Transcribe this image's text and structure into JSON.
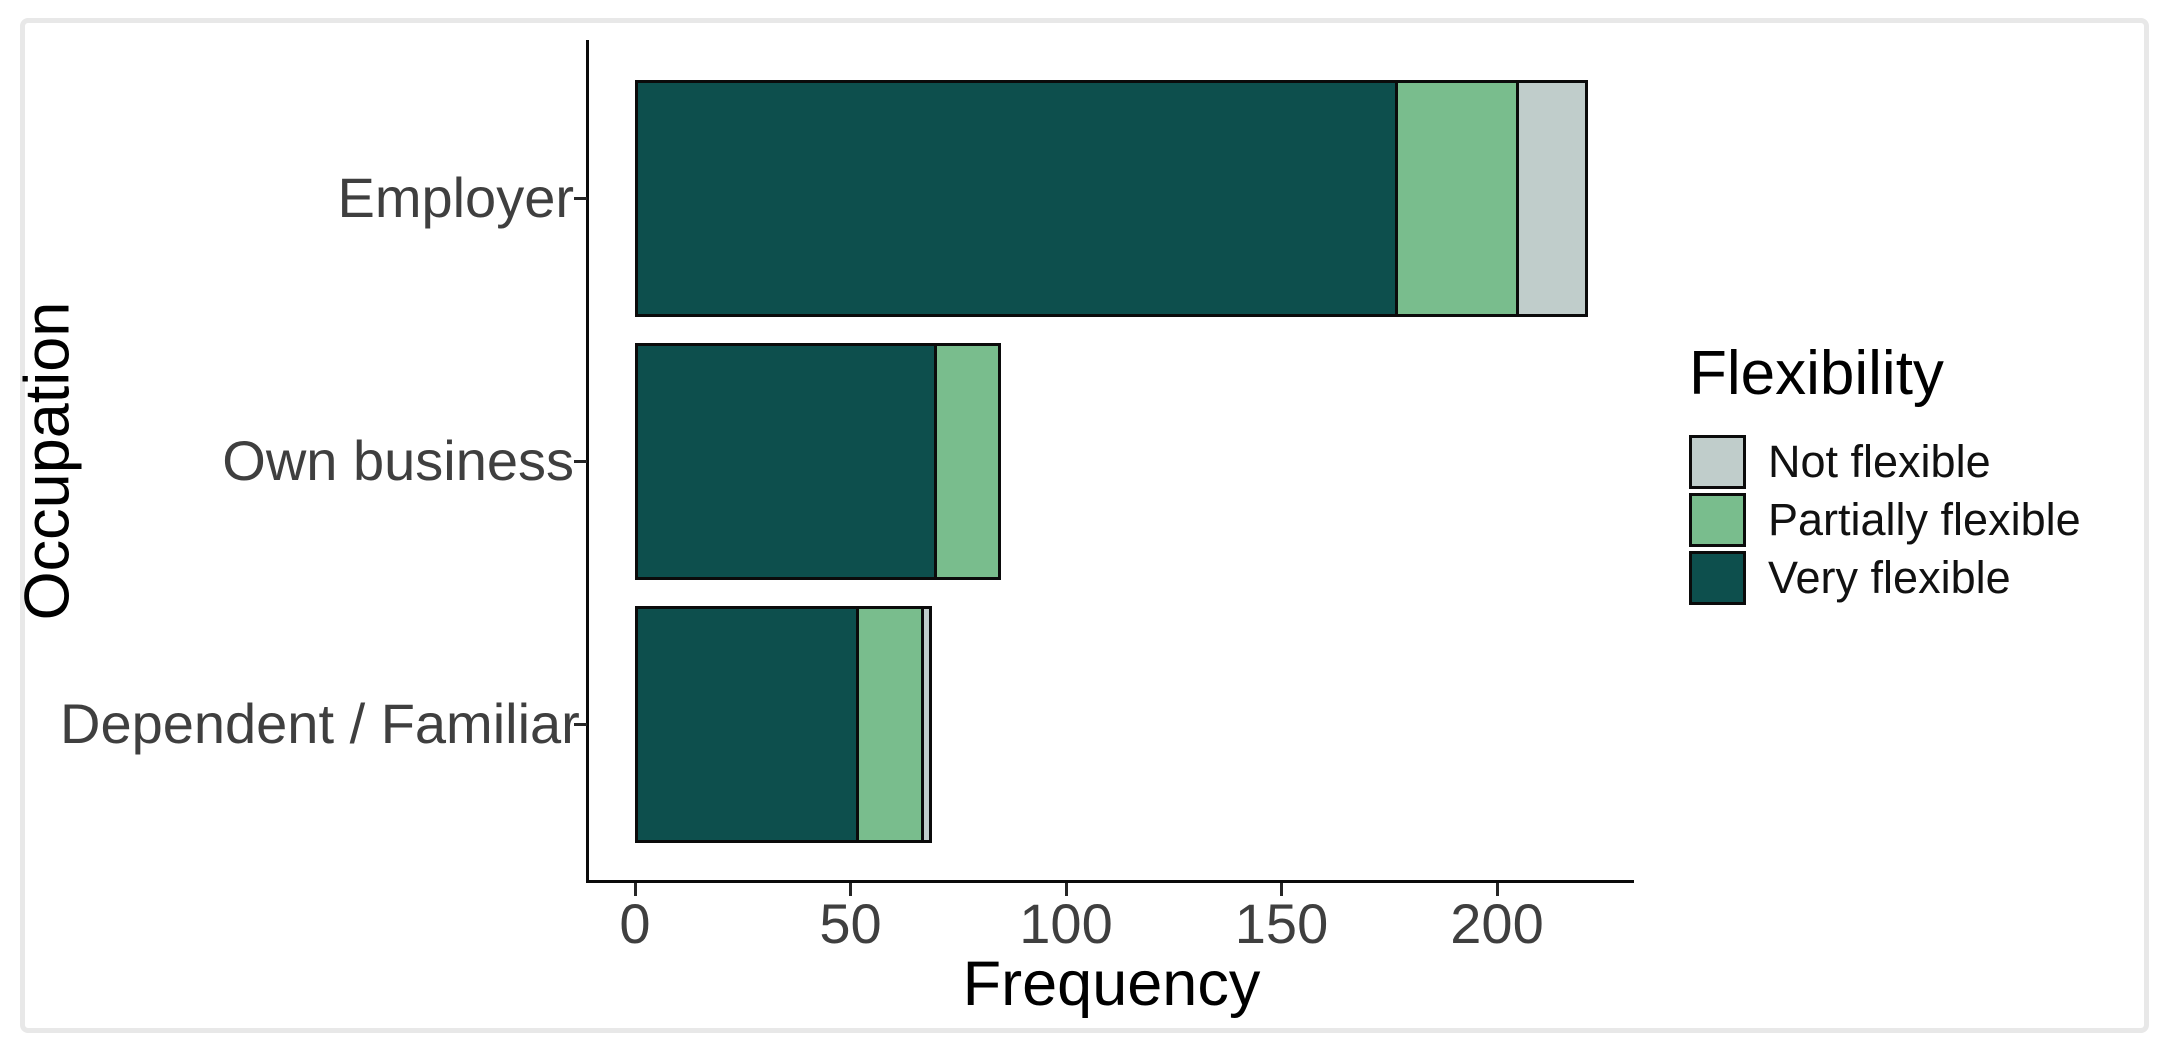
{
  "chart_data": {
    "type": "bar",
    "orientation": "horizontal",
    "stacked": true,
    "title": "",
    "xlabel": "Frequency",
    "ylabel": "Occupation",
    "categories": [
      "Employer",
      "Own business",
      "Dependent / Familiar"
    ],
    "series": [
      {
        "name": "Very flexible",
        "color": "#0D4F4D",
        "values": [
          177,
          70,
          52
        ]
      },
      {
        "name": "Partially flexible",
        "color": "#79BD8D",
        "values": [
          28,
          15,
          15
        ]
      },
      {
        "name": "Not flexible",
        "color": "#C0CDCB",
        "values": [
          16,
          0,
          2
        ]
      }
    ],
    "x_ticks": [
      0,
      50,
      100,
      150,
      200
    ],
    "xlim": [
      0,
      232
    ],
    "grid": false,
    "bar_outline_color": "#0b0b0b",
    "legend": {
      "title": "Flexibility",
      "position": "right",
      "items": [
        {
          "label": "Not flexible",
          "color": "#C0CDCB"
        },
        {
          "label": "Partially flexible",
          "color": "#79BD8D"
        },
        {
          "label": "Very flexible",
          "color": "#0D4F4D"
        }
      ]
    },
    "axis_text_color": "#3f3f3f",
    "axis_title_color": "#000000"
  }
}
